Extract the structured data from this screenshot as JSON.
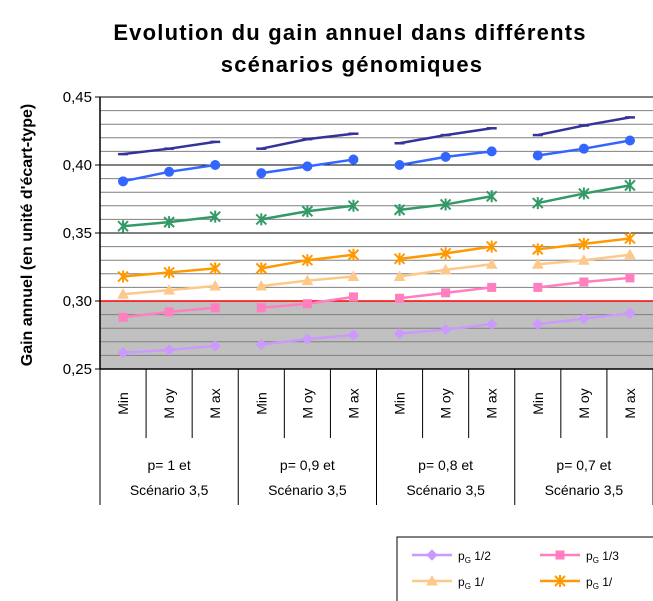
{
  "chart_data": {
    "type": "line",
    "title": [
      "Evolution du gain annuel dans différents",
      "scénarios génomiques"
    ],
    "ylabel": "Gain annuel (en unité d'écart-type)",
    "ylim": [
      0.25,
      0.45
    ],
    "yticks": [
      "0,25",
      "0,30",
      "0,35",
      "0,40",
      "0,45"
    ],
    "grid": true,
    "threshold_line": 0.3,
    "groups": [
      {
        "line1": "p= 1 et",
        "line2": "Scénario  3,5",
        "categories": [
          "Min",
          "M oy",
          "M ax"
        ]
      },
      {
        "line1": "p= 0,9 et",
        "line2": "Scénario  3,5",
        "categories": [
          "Min",
          "M oy",
          "M ax"
        ]
      },
      {
        "line1": "p= 0,8 et",
        "line2": "Scénario  3,5",
        "categories": [
          "Min",
          "M oy",
          "M ax"
        ]
      },
      {
        "line1": "p= 0,7 et",
        "line2": "Scénario  3,5",
        "categories": [
          "Min",
          "M oy",
          "M ax"
        ]
      }
    ],
    "series": [
      {
        "name_main": "p",
        "name_sub": "G",
        "name_suffix": " 1/2",
        "color": "#cc99ff",
        "marker": "diamond",
        "values": [
          [
            0.262,
            0.264,
            0.267
          ],
          [
            0.268,
            0.272,
            0.275
          ],
          [
            0.276,
            0.279,
            0.283
          ],
          [
            0.283,
            0.287,
            0.291
          ]
        ]
      },
      {
        "name_main": "p",
        "name_sub": "G",
        "name_suffix": " 1/3",
        "color": "#ff7fbf",
        "marker": "square",
        "values": [
          [
            0.288,
            0.292,
            0.295
          ],
          [
            0.295,
            0.298,
            0.303
          ],
          [
            0.302,
            0.306,
            0.31
          ],
          [
            0.31,
            0.314,
            0.317
          ]
        ]
      },
      {
        "name_main": "p",
        "name_sub": "G",
        "name_suffix": " 1/",
        "color": "#fcc98a",
        "marker": "triangle",
        "values": [
          [
            0.305,
            0.308,
            0.311
          ],
          [
            0.311,
            0.315,
            0.318
          ],
          [
            0.318,
            0.323,
            0.327
          ],
          [
            0.327,
            0.33,
            0.334
          ]
        ]
      },
      {
        "name_main": "p",
        "name_sub": "G",
        "name_suffix": " 1/",
        "color": "#ff9900",
        "marker": "star",
        "values": [
          [
            0.318,
            0.321,
            0.324
          ],
          [
            0.324,
            0.33,
            0.334
          ],
          [
            0.331,
            0.335,
            0.34
          ],
          [
            0.338,
            0.342,
            0.346
          ]
        ]
      },
      {
        "name_main": "",
        "name_sub": "",
        "name_suffix": "",
        "color": "#339966",
        "marker": "star",
        "values": [
          [
            0.355,
            0.358,
            0.362
          ],
          [
            0.36,
            0.366,
            0.37
          ],
          [
            0.367,
            0.371,
            0.377
          ],
          [
            0.372,
            0.379,
            0.385
          ]
        ]
      },
      {
        "name_main": "",
        "name_sub": "",
        "name_suffix": "",
        "color": "#3366ff",
        "marker": "circle",
        "values": [
          [
            0.388,
            0.395,
            0.4
          ],
          [
            0.394,
            0.399,
            0.404
          ],
          [
            0.4,
            0.406,
            0.41
          ],
          [
            0.407,
            0.412,
            0.418
          ]
        ]
      },
      {
        "name_main": "",
        "name_sub": "",
        "name_suffix": "",
        "color": "#333399",
        "marker": "dash",
        "values": [
          [
            0.408,
            0.412,
            0.417
          ],
          [
            0.412,
            0.419,
            0.423
          ],
          [
            0.416,
            0.422,
            0.427
          ],
          [
            0.422,
            0.429,
            0.435
          ]
        ]
      }
    ],
    "legend": {
      "placement": "bottom-right",
      "entries": [
        0,
        1,
        2,
        3
      ]
    }
  }
}
